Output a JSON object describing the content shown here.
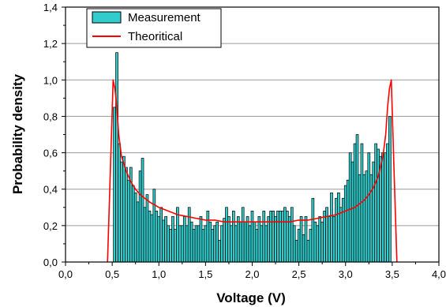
{
  "chart_data": {
    "type": "bar",
    "xlabel": "Voltage (V)",
    "ylabel": "Probability density",
    "xlim": [
      0,
      4
    ],
    "ylim": [
      0,
      1.4
    ],
    "xticks": [
      "0,0",
      "0,5",
      "1,0",
      "1,5",
      "2,0",
      "2,5",
      "3,0",
      "3,5",
      "4,0"
    ],
    "yticks": [
      "0,0",
      "0,2",
      "0,4",
      "0,6",
      "0,8",
      "1,0",
      "1,2",
      "1,4"
    ],
    "grid": "horizontal",
    "legend_position": "top-left",
    "bin_width": 0.025,
    "series": [
      {
        "name": "Measurement",
        "kind": "histogram",
        "color": "#33CCCC",
        "edge_color": "#000000",
        "x": [
          0.525,
          0.55,
          0.575,
          0.6,
          0.625,
          0.65,
          0.675,
          0.7,
          0.725,
          0.75,
          0.775,
          0.8,
          0.825,
          0.85,
          0.875,
          0.9,
          0.925,
          0.95,
          0.975,
          1.0,
          1.025,
          1.05,
          1.075,
          1.1,
          1.125,
          1.15,
          1.175,
          1.2,
          1.225,
          1.25,
          1.275,
          1.3,
          1.325,
          1.35,
          1.375,
          1.4,
          1.425,
          1.45,
          1.475,
          1.5,
          1.525,
          1.55,
          1.575,
          1.6,
          1.625,
          1.65,
          1.675,
          1.7,
          1.725,
          1.75,
          1.775,
          1.8,
          1.825,
          1.85,
          1.875,
          1.9,
          1.925,
          1.95,
          1.975,
          2.0,
          2.025,
          2.05,
          2.075,
          2.1,
          2.125,
          2.15,
          2.175,
          2.2,
          2.225,
          2.25,
          2.275,
          2.3,
          2.325,
          2.35,
          2.375,
          2.4,
          2.425,
          2.45,
          2.475,
          2.5,
          2.525,
          2.55,
          2.575,
          2.6,
          2.625,
          2.65,
          2.675,
          2.7,
          2.725,
          2.75,
          2.775,
          2.8,
          2.825,
          2.85,
          2.875,
          2.9,
          2.925,
          2.95,
          2.975,
          3.0,
          3.025,
          3.05,
          3.075,
          3.1,
          3.125,
          3.15,
          3.175,
          3.2,
          3.225,
          3.25,
          3.275,
          3.3,
          3.325,
          3.35,
          3.375,
          3.4,
          3.425,
          3.45,
          3.475
        ],
        "values": [
          0.85,
          1.15,
          0.65,
          0.55,
          0.58,
          0.52,
          0.45,
          0.52,
          0.42,
          0.38,
          0.33,
          0.5,
          0.57,
          0.3,
          0.37,
          0.28,
          0.26,
          0.4,
          0.28,
          0.25,
          0.3,
          0.23,
          0.25,
          0.2,
          0.18,
          0.25,
          0.18,
          0.3,
          0.2,
          0.2,
          0.25,
          0.2,
          0.3,
          0.22,
          0.18,
          0.2,
          0.2,
          0.25,
          0.18,
          0.2,
          0.28,
          0.22,
          0.18,
          0.2,
          0.22,
          0.12,
          0.2,
          0.24,
          0.3,
          0.25,
          0.2,
          0.28,
          0.2,
          0.25,
          0.22,
          0.3,
          0.22,
          0.25,
          0.2,
          0.28,
          0.22,
          0.18,
          0.25,
          0.2,
          0.28,
          0.2,
          0.25,
          0.28,
          0.28,
          0.25,
          0.28,
          0.28,
          0.28,
          0.3,
          0.28,
          0.25,
          0.3,
          0.2,
          0.12,
          0.18,
          0.25,
          0.15,
          0.25,
          0.12,
          0.18,
          0.35,
          0.22,
          0.2,
          0.25,
          0.22,
          0.28,
          0.3,
          0.25,
          0.38,
          0.25,
          0.35,
          0.38,
          0.3,
          0.35,
          0.42,
          0.45,
          0.6,
          0.55,
          0.65,
          0.7,
          0.48,
          0.65,
          0.48,
          0.5,
          0.6,
          0.48,
          0.55,
          0.65,
          0.62,
          0.58,
          0.6,
          0.6,
          0.65,
          0.8
        ]
      },
      {
        "name": "Theoritical",
        "kind": "line",
        "color": "#FF0000",
        "x": [
          0.45,
          0.48,
          0.51,
          0.53,
          0.55,
          0.57,
          0.6,
          0.65,
          0.7,
          0.75,
          0.8,
          0.9,
          1.0,
          1.1,
          1.2,
          1.3,
          1.4,
          1.5,
          1.6,
          1.7,
          1.8,
          1.9,
          2.0,
          2.1,
          2.2,
          2.3,
          2.4,
          2.5,
          2.6,
          2.7,
          2.8,
          2.9,
          3.0,
          3.1,
          3.2,
          3.25,
          3.3,
          3.35,
          3.4,
          3.43,
          3.45,
          3.47,
          3.49,
          3.52,
          3.55
        ],
        "values": [
          0.0,
          0.5,
          1.0,
          0.95,
          0.85,
          0.7,
          0.58,
          0.5,
          0.44,
          0.4,
          0.37,
          0.33,
          0.3,
          0.28,
          0.26,
          0.25,
          0.24,
          0.23,
          0.23,
          0.22,
          0.22,
          0.22,
          0.22,
          0.22,
          0.22,
          0.22,
          0.22,
          0.23,
          0.23,
          0.24,
          0.25,
          0.26,
          0.28,
          0.3,
          0.34,
          0.37,
          0.41,
          0.47,
          0.58,
          0.7,
          0.85,
          0.95,
          1.0,
          0.5,
          0.0
        ]
      }
    ]
  }
}
